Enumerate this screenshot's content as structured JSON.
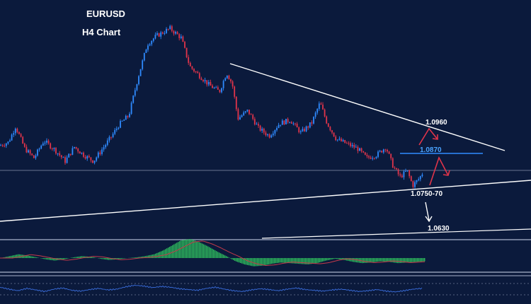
{
  "chart_data": {
    "type": "candlestick",
    "title": "EURUSD",
    "subtitle": "H4 Chart",
    "grid": false,
    "annotations": [
      {
        "label": "1.0960",
        "kind": "target-up"
      },
      {
        "label": "1.0870",
        "kind": "resistance"
      },
      {
        "label": "1.0750-70",
        "kind": "support"
      },
      {
        "label": "1.0630",
        "kind": "target-down"
      }
    ],
    "price_path": [
      [
        0,
        0.0865
      ],
      [
        12,
        0.0875
      ],
      [
        22,
        0.0925
      ],
      [
        35,
        0.0855
      ],
      [
        48,
        0.0825
      ],
      [
        62,
        0.088
      ],
      [
        78,
        0.085
      ],
      [
        92,
        0.0815
      ],
      [
        105,
        0.086
      ],
      [
        118,
        0.0835
      ],
      [
        132,
        0.0815
      ],
      [
        145,
        0.0855
      ],
      [
        158,
        0.0895
      ],
      [
        168,
        0.093
      ],
      [
        182,
        0.096
      ],
      [
        195,
        0.108
      ],
      [
        208,
        0.1185
      ],
      [
        220,
        0.121
      ],
      [
        240,
        0.1235
      ],
      [
        256,
        0.1205
      ],
      [
        268,
        0.1115
      ],
      [
        282,
        0.1085
      ],
      [
        296,
        0.1055
      ],
      [
        310,
        0.1035
      ],
      [
        320,
        0.1095
      ],
      [
        328,
        0.106
      ],
      [
        336,
        0.095
      ],
      [
        350,
        0.0975
      ],
      [
        365,
        0.092
      ],
      [
        380,
        0.0895
      ],
      [
        395,
        0.0935
      ],
      [
        410,
        0.0945
      ],
      [
        425,
        0.0905
      ],
      [
        440,
        0.0935
      ],
      [
        452,
        0.1
      ],
      [
        462,
        0.0935
      ],
      [
        475,
        0.0885
      ],
      [
        490,
        0.087
      ],
      [
        505,
        0.0855
      ],
      [
        518,
        0.0825
      ],
      [
        532,
        0.0835
      ],
      [
        545,
        0.086
      ],
      [
        555,
        0.08
      ],
      [
        565,
        0.0765
      ],
      [
        575,
        0.0785
      ],
      [
        583,
        0.0738
      ],
      [
        592,
        0.076
      ],
      [
        598,
        0.0782
      ]
    ],
    "macd_hist": [
      0,
      0.3,
      0.6,
      0.4,
      0.1,
      -0.2,
      -0.4,
      -0.2,
      0.1,
      0.3,
      0.2,
      -0.1,
      -0.3,
      -0.2,
      0,
      0.1,
      0.3,
      0.6,
      1.2,
      2.0,
      2.8,
      3.0,
      2.5,
      1.8,
      1.0,
      0.3,
      -0.5,
      -1.0,
      -1.3,
      -1.2,
      -0.9,
      -0.7,
      -0.8,
      -0.9,
      -1.0,
      -0.8,
      -0.4,
      -0.1,
      -0.3,
      -0.6,
      -0.8,
      -0.7,
      -0.5,
      -0.6,
      -0.8,
      -0.7,
      -0.6,
      -0.5
    ],
    "rsi": [
      55,
      50,
      46,
      52,
      48,
      44,
      50,
      53,
      47,
      45,
      49,
      52,
      48,
      50,
      56,
      60,
      58,
      54,
      57,
      55,
      51,
      49,
      47,
      52,
      55,
      50,
      46,
      44,
      48,
      51,
      49,
      46,
      50,
      53,
      49,
      47,
      45,
      48,
      50,
      47,
      44,
      46,
      49,
      45,
      43,
      46,
      50,
      52
    ]
  }
}
